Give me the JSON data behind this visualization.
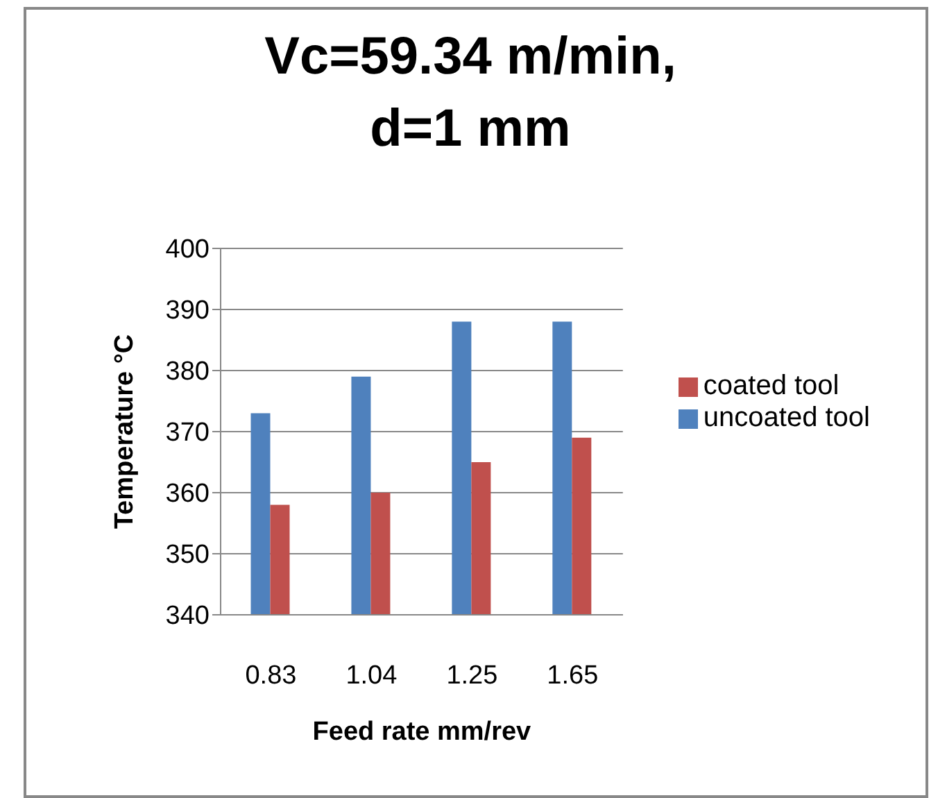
{
  "chart_data": {
    "type": "bar",
    "title": "Vc=59.34 m/min, d=1 mm",
    "xlabel": "Feed rate mm/rev",
    "ylabel": "Temperature °C",
    "categories": [
      "0.83",
      "1.04",
      "1.25",
      "1.65"
    ],
    "series": [
      {
        "name": "uncoated tool",
        "color": "#4f81bd",
        "values": [
          373,
          379,
          388,
          388
        ]
      },
      {
        "name": "coated tool",
        "color": "#c0504d",
        "values": [
          358,
          360,
          365,
          369
        ]
      }
    ],
    "ylim": [
      340,
      400
    ],
    "yticks": [
      340,
      350,
      360,
      370,
      380,
      390,
      400
    ],
    "grid": "y",
    "legend": "right"
  }
}
